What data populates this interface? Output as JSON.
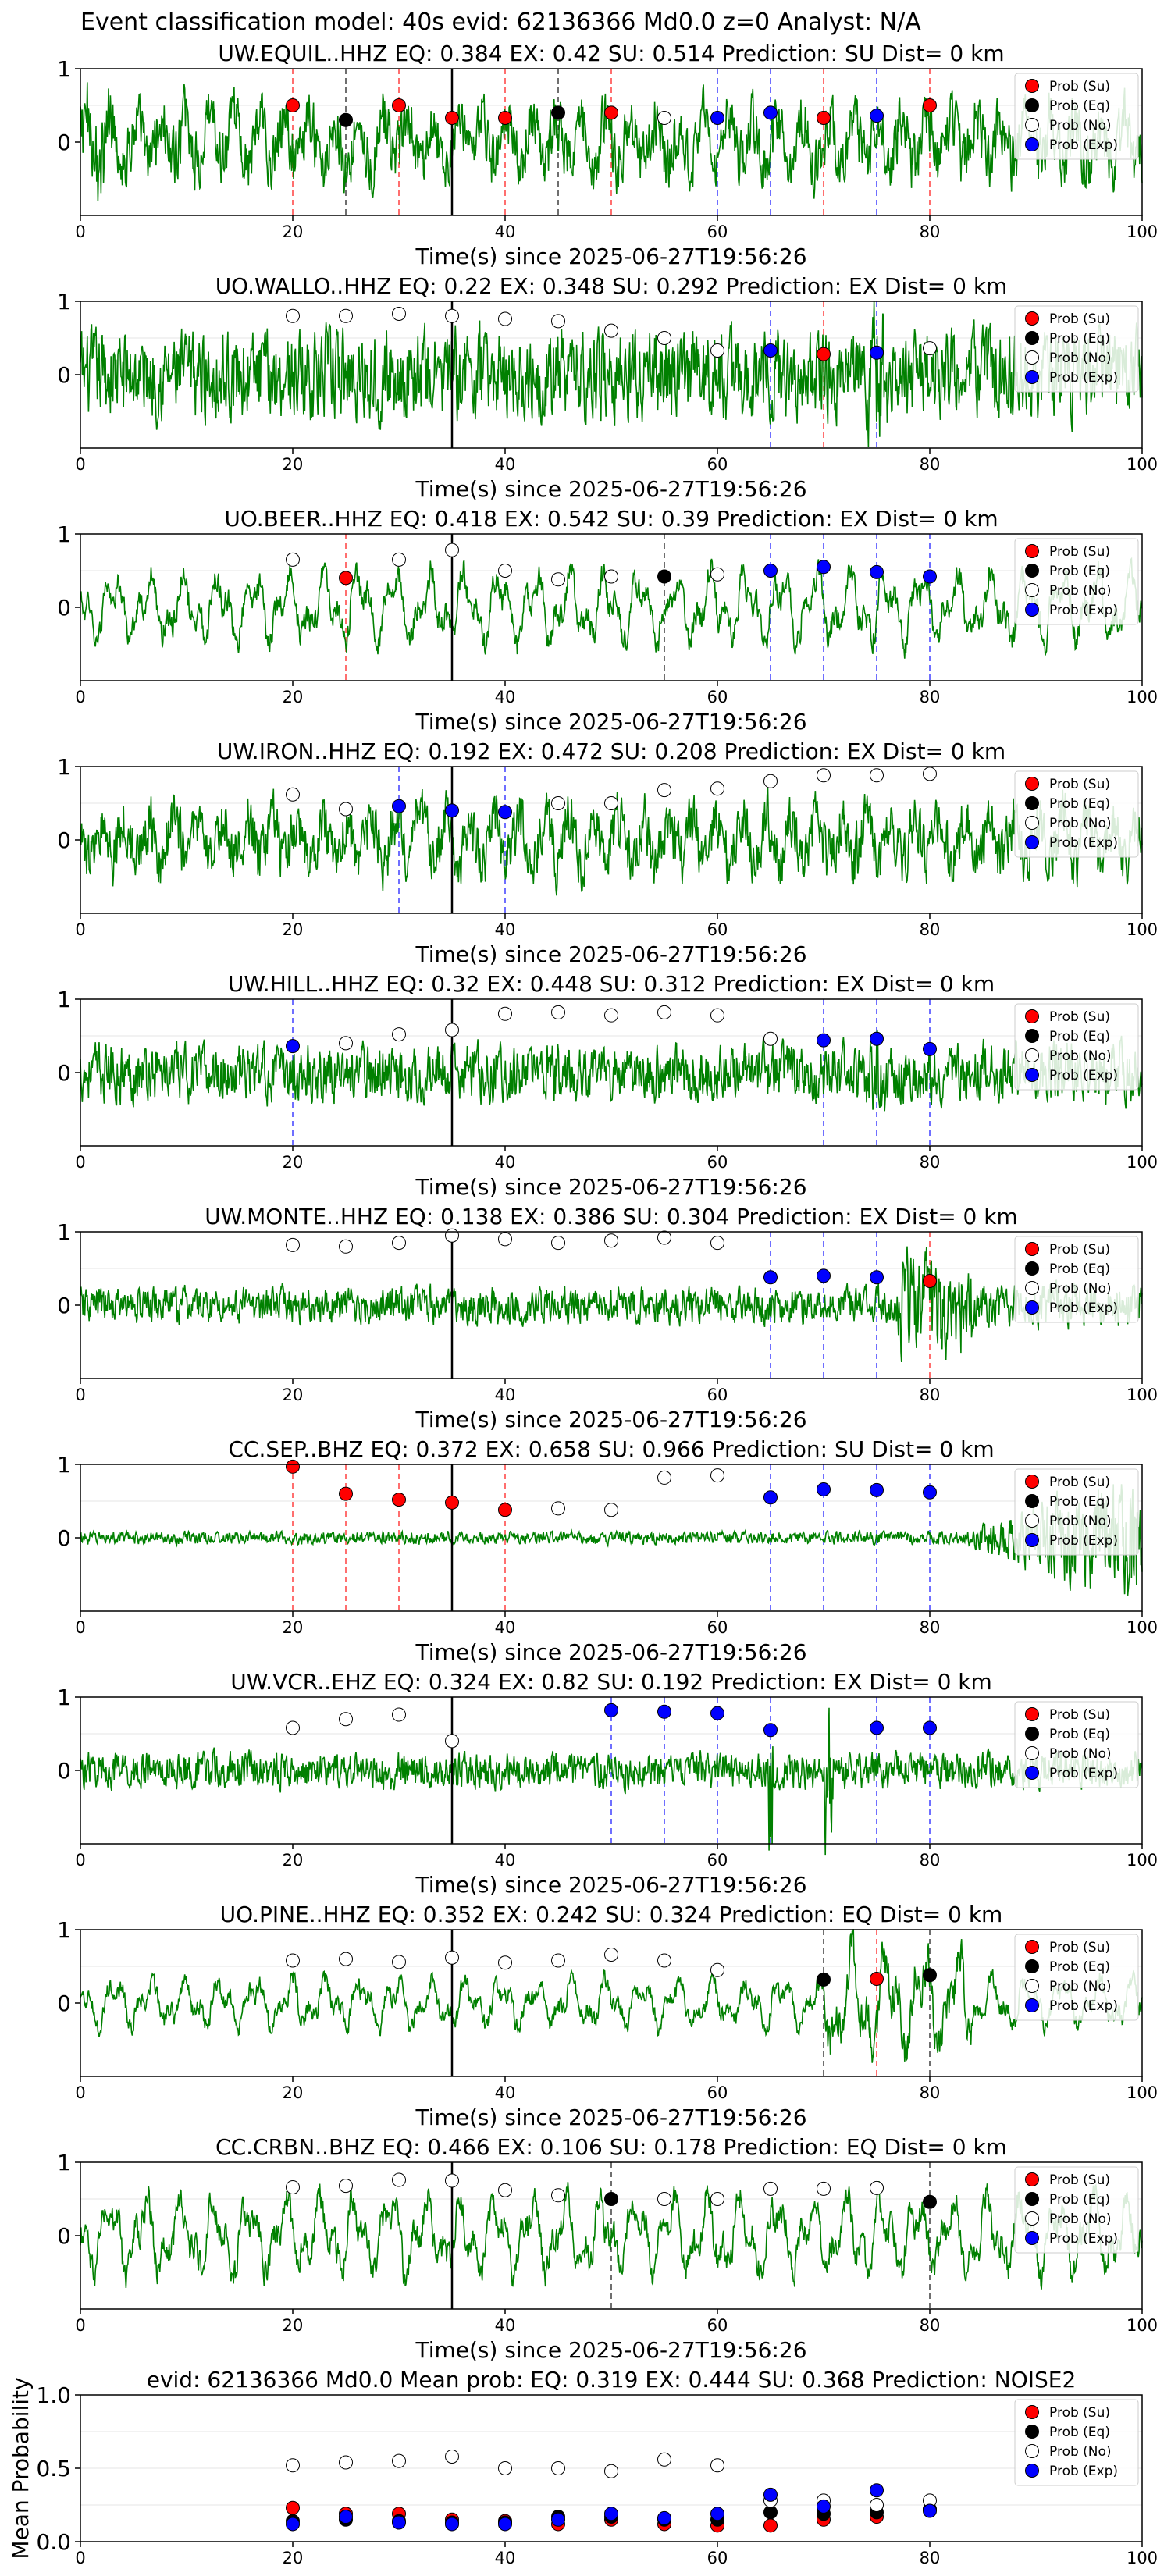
{
  "figure_title": "Event classification model: 40s evid: 62136366 Md0.0 z=0 Analyst: N/A",
  "legend_labels": [
    "Prob (Su)",
    "Prob (Eq)",
    "Prob (No)",
    "Prob (Exp)"
  ],
  "colors": {
    "su": "#ff0000",
    "eq": "#000000",
    "no": "#ffffff",
    "exp": "#0000ff",
    "trace": "#008000",
    "vline_su": "#ff0000",
    "vline_eq": "#000000",
    "vline_exp": "#0000ff"
  },
  "chart_data": [
    {
      "type": "line",
      "title": "UW.EQUIL..HHZ    EQ: 0.384   EX: 0.42   SU: 0.514    Prediction: SU     Dist= 0 km",
      "xlabel": "Time(s) since 2025-06-27T19:56:26",
      "xlim": [
        0,
        100
      ],
      "ylim": [
        -1,
        1
      ],
      "xticks": [
        0,
        20,
        40,
        60,
        80,
        100
      ],
      "yticks": [
        0,
        1
      ],
      "marker": 35,
      "amp": 0.75,
      "style": "mix",
      "points": [
        [
          20,
          "su",
          0.5
        ],
        [
          25,
          "eq",
          0.3
        ],
        [
          30,
          "su",
          0.5
        ],
        [
          35,
          "su",
          0.33
        ],
        [
          40,
          "su",
          0.33
        ],
        [
          45,
          "eq",
          0.4
        ],
        [
          50,
          "su",
          0.4
        ],
        [
          55,
          "no",
          0.33
        ],
        [
          60,
          "exp",
          0.33
        ],
        [
          65,
          "exp",
          0.4
        ],
        [
          70,
          "su",
          0.33
        ],
        [
          75,
          "exp",
          0.36
        ],
        [
          80,
          "su",
          0.5
        ]
      ]
    },
    {
      "type": "line",
      "title": "UO.WALLO..HHZ   EQ: 0.22   EX: 0.348   SU: 0.292    Prediction: EX     Dist= 0 km",
      "xlabel": "Time(s) since 2025-06-27T19:56:26",
      "xlim": [
        0,
        100
      ],
      "ylim": [
        -1,
        1
      ],
      "xticks": [
        0,
        20,
        40,
        60,
        80,
        100
      ],
      "yticks": [
        0,
        1
      ],
      "marker": 35,
      "amp": 0.85,
      "style": "dense",
      "points": [
        [
          20,
          "no",
          0.8
        ],
        [
          25,
          "no",
          0.8
        ],
        [
          30,
          "no",
          0.83
        ],
        [
          35,
          "no",
          0.8
        ],
        [
          40,
          "no",
          0.76
        ],
        [
          45,
          "no",
          0.73
        ],
        [
          50,
          "no",
          0.6
        ],
        [
          55,
          "no",
          0.5
        ],
        [
          60,
          "no",
          0.33
        ],
        [
          65,
          "exp",
          0.33
        ],
        [
          70,
          "su",
          0.28
        ],
        [
          75,
          "exp",
          0.3
        ],
        [
          80,
          "no",
          0.36
        ]
      ]
    },
    {
      "type": "line",
      "title": "UO.BEER..HHZ   EQ: 0.418   EX: 0.542   SU: 0.39    Prediction: EX     Dist= 0 km",
      "xlabel": "Time(s) since 2025-06-27T19:56:26",
      "xlim": [
        0,
        100
      ],
      "ylim": [
        -1,
        1
      ],
      "xticks": [
        0,
        20,
        40,
        60,
        80,
        100
      ],
      "yticks": [
        0,
        1
      ],
      "marker": 35,
      "amp": 0.6,
      "style": "wave",
      "points": [
        [
          20,
          "no",
          0.65
        ],
        [
          25,
          "su",
          0.4
        ],
        [
          30,
          "no",
          0.65
        ],
        [
          35,
          "no",
          0.78
        ],
        [
          40,
          "no",
          0.5
        ],
        [
          45,
          "no",
          0.38
        ],
        [
          50,
          "no",
          0.42
        ],
        [
          55,
          "eq",
          0.42
        ],
        [
          60,
          "no",
          0.45
        ],
        [
          65,
          "exp",
          0.5
        ],
        [
          70,
          "exp",
          0.55
        ],
        [
          75,
          "exp",
          0.48
        ],
        [
          80,
          "exp",
          0.42
        ]
      ]
    },
    {
      "type": "line",
      "title": "UW.IRON..HHZ   EQ: 0.192   EX: 0.472   SU: 0.208    Prediction: EX     Dist= 0 km",
      "xlabel": "Time(s) since 2025-06-27T19:56:26",
      "xlim": [
        0,
        100
      ],
      "ylim": [
        -1,
        1
      ],
      "xticks": [
        0,
        20,
        40,
        60,
        80,
        100
      ],
      "yticks": [
        0,
        1
      ],
      "marker": 35,
      "amp": 0.7,
      "style": "mix",
      "points": [
        [
          20,
          "no",
          0.62
        ],
        [
          25,
          "no",
          0.42
        ],
        [
          30,
          "exp",
          0.46
        ],
        [
          35,
          "exp",
          0.4
        ],
        [
          40,
          "exp",
          0.38
        ],
        [
          45,
          "no",
          0.5
        ],
        [
          50,
          "no",
          0.5
        ],
        [
          55,
          "no",
          0.68
        ],
        [
          60,
          "no",
          0.7
        ],
        [
          65,
          "no",
          0.8
        ],
        [
          70,
          "no",
          0.88
        ],
        [
          75,
          "no",
          0.88
        ],
        [
          80,
          "no",
          0.9
        ]
      ]
    },
    {
      "type": "line",
      "title": "UW.HILL..HHZ   EQ: 0.32   EX: 0.448   SU: 0.312    Prediction: EX     Dist= 0 km",
      "xlabel": "Time(s) since 2025-06-27T19:56:26",
      "xlim": [
        0,
        100
      ],
      "ylim": [
        -1,
        1
      ],
      "xticks": [
        0,
        20,
        40,
        60,
        80,
        100
      ],
      "yticks": [
        0,
        1
      ],
      "marker": 35,
      "amp": 0.55,
      "style": "dense",
      "points": [
        [
          20,
          "exp",
          0.36
        ],
        [
          25,
          "no",
          0.4
        ],
        [
          30,
          "no",
          0.52
        ],
        [
          35,
          "no",
          0.58
        ],
        [
          40,
          "no",
          0.8
        ],
        [
          45,
          "no",
          0.82
        ],
        [
          50,
          "no",
          0.78
        ],
        [
          55,
          "no",
          0.82
        ],
        [
          60,
          "no",
          0.78
        ],
        [
          65,
          "no",
          0.46
        ],
        [
          70,
          "exp",
          0.44
        ],
        [
          75,
          "exp",
          0.46
        ],
        [
          80,
          "exp",
          0.32
        ]
      ]
    },
    {
      "type": "line",
      "title": "UW.MONTE..HHZ   EQ: 0.138   EX: 0.386   SU: 0.304    Prediction: EX     Dist= 0 km",
      "xlabel": "Time(s) since 2025-06-27T19:56:26",
      "xlim": [
        0,
        100
      ],
      "ylim": [
        -1,
        1
      ],
      "xticks": [
        0,
        20,
        40,
        60,
        80,
        100
      ],
      "yticks": [
        0,
        1
      ],
      "marker": 35,
      "amp": 0.35,
      "style": "burst80",
      "points": [
        [
          20,
          "no",
          0.82
        ],
        [
          25,
          "no",
          0.8
        ],
        [
          30,
          "no",
          0.85
        ],
        [
          35,
          "no",
          0.95
        ],
        [
          40,
          "no",
          0.9
        ],
        [
          45,
          "no",
          0.85
        ],
        [
          50,
          "no",
          0.88
        ],
        [
          55,
          "no",
          0.92
        ],
        [
          60,
          "no",
          0.85
        ],
        [
          65,
          "exp",
          0.38
        ],
        [
          70,
          "exp",
          0.4
        ],
        [
          75,
          "exp",
          0.38
        ],
        [
          80,
          "su",
          0.33
        ]
      ]
    },
    {
      "type": "line",
      "title": "CC.SEP..BHZ   EQ: 0.372   EX: 0.658   SU: 0.966    Prediction: SU     Dist= 0 km",
      "xlabel": "Time(s) since 2025-06-27T19:56:26",
      "xlim": [
        0,
        100
      ],
      "ylim": [
        -1,
        1
      ],
      "xticks": [
        0,
        20,
        40,
        60,
        80,
        100
      ],
      "yticks": [
        0,
        1
      ],
      "marker": 35,
      "amp": 0.12,
      "style": "quietburst",
      "points": [
        [
          20,
          "su",
          0.97
        ],
        [
          25,
          "su",
          0.6
        ],
        [
          30,
          "su",
          0.52
        ],
        [
          35,
          "su",
          0.48
        ],
        [
          40,
          "su",
          0.38
        ],
        [
          45,
          "no",
          0.4
        ],
        [
          50,
          "no",
          0.38
        ],
        [
          55,
          "no",
          0.82
        ],
        [
          60,
          "no",
          0.85
        ],
        [
          65,
          "exp",
          0.55
        ],
        [
          70,
          "exp",
          0.66
        ],
        [
          75,
          "exp",
          0.65
        ],
        [
          80,
          "exp",
          0.62
        ]
      ]
    },
    {
      "type": "line",
      "title": "UW.VCR..EHZ   EQ: 0.324   EX: 0.82   SU: 0.192    Prediction: EX     Dist= 0 km",
      "xlabel": "Time(s) since 2025-06-27T19:56:26",
      "xlim": [
        0,
        100
      ],
      "ylim": [
        -1,
        1
      ],
      "xticks": [
        0,
        20,
        40,
        60,
        80,
        100
      ],
      "yticks": [
        0,
        1
      ],
      "marker": 35,
      "amp": 0.35,
      "style": "spikes",
      "points": [
        [
          20,
          "no",
          0.58
        ],
        [
          25,
          "no",
          0.7
        ],
        [
          30,
          "no",
          0.76
        ],
        [
          35,
          "no",
          0.4
        ],
        [
          50,
          "exp",
          0.82
        ],
        [
          55,
          "exp",
          0.8
        ],
        [
          60,
          "exp",
          0.78
        ],
        [
          65,
          "exp",
          0.55
        ],
        [
          75,
          "exp",
          0.58
        ],
        [
          80,
          "exp",
          0.58
        ]
      ]
    },
    {
      "type": "line",
      "title": "UO.PINE..HHZ   EQ: 0.352   EX: 0.242   SU: 0.324    Prediction: EQ     Dist= 0 km",
      "xlabel": "Time(s) since 2025-06-27T19:56:26",
      "xlim": [
        0,
        100
      ],
      "ylim": [
        -1,
        1
      ],
      "xticks": [
        0,
        20,
        40,
        60,
        80,
        100
      ],
      "yticks": [
        0,
        1
      ],
      "marker": 35,
      "amp": 0.4,
      "style": "waveburst",
      "points": [
        [
          20,
          "no",
          0.58
        ],
        [
          25,
          "no",
          0.6
        ],
        [
          30,
          "no",
          0.56
        ],
        [
          35,
          "no",
          0.62
        ],
        [
          40,
          "no",
          0.55
        ],
        [
          45,
          "no",
          0.58
        ],
        [
          50,
          "no",
          0.66
        ],
        [
          55,
          "no",
          0.58
        ],
        [
          60,
          "no",
          0.45
        ],
        [
          70,
          "eq",
          0.32
        ],
        [
          75,
          "su",
          0.33
        ],
        [
          80,
          "eq",
          0.38
        ]
      ]
    },
    {
      "type": "line",
      "title": "CC.CRBN..BHZ   EQ: 0.466   EX: 0.106   SU: 0.178    Prediction: EQ     Dist= 0 km",
      "xlabel": "Time(s) since 2025-06-27T19:56:26",
      "xlim": [
        0,
        100
      ],
      "ylim": [
        -1,
        1
      ],
      "xticks": [
        0,
        20,
        40,
        60,
        80,
        100
      ],
      "yticks": [
        0,
        1
      ],
      "marker": 35,
      "amp": 0.65,
      "style": "wave",
      "points": [
        [
          20,
          "no",
          0.66
        ],
        [
          25,
          "no",
          0.68
        ],
        [
          30,
          "no",
          0.76
        ],
        [
          35,
          "no",
          0.75
        ],
        [
          40,
          "no",
          0.62
        ],
        [
          45,
          "no",
          0.55
        ],
        [
          50,
          "eq",
          0.5
        ],
        [
          55,
          "no",
          0.5
        ],
        [
          60,
          "no",
          0.5
        ],
        [
          65,
          "no",
          0.64
        ],
        [
          70,
          "no",
          0.64
        ],
        [
          75,
          "no",
          0.65
        ],
        [
          80,
          "eq",
          0.46
        ]
      ]
    },
    {
      "type": "scatter",
      "title": "evid: 62136366  Md0.0   Mean prob:   EQ: 0.319   EX: 0.444   SU: 0.368    Prediction: NOISE2",
      "xlabel": "",
      "ylabel": "Mean Probability",
      "xlim": [
        0,
        100
      ],
      "ylim": [
        0,
        1
      ],
      "xticks": [
        0,
        20,
        40,
        60,
        80,
        100
      ],
      "yticks": [
        0.0,
        0.5,
        1.0
      ],
      "yticklabels": [
        "0.0",
        "0.5",
        "1.0"
      ],
      "series": [
        {
          "name": "Prob (Su)",
          "key": "su",
          "x": [
            20,
            25,
            30,
            35,
            40,
            45,
            50,
            55,
            60,
            65,
            70,
            75,
            80
          ],
          "y": [
            0.23,
            0.19,
            0.19,
            0.15,
            0.14,
            0.12,
            0.15,
            0.12,
            0.11,
            0.11,
            0.15,
            0.17,
            0.22
          ]
        },
        {
          "name": "Prob (Eq)",
          "key": "eq",
          "x": [
            20,
            25,
            30,
            35,
            40,
            45,
            50,
            55,
            60,
            65,
            70,
            75,
            80
          ],
          "y": [
            0.14,
            0.15,
            0.14,
            0.13,
            0.13,
            0.17,
            0.17,
            0.15,
            0.15,
            0.2,
            0.19,
            0.2,
            0.22
          ]
        },
        {
          "name": "Prob (No)",
          "key": "no",
          "x": [
            20,
            25,
            30,
            35,
            40,
            45,
            50,
            55,
            60,
            65,
            70,
            75,
            80
          ],
          "y": [
            0.52,
            0.54,
            0.55,
            0.58,
            0.5,
            0.5,
            0.48,
            0.56,
            0.52,
            0.28,
            0.28,
            0.25,
            0.28
          ]
        },
        {
          "name": "Prob (Exp)",
          "key": "exp",
          "x": [
            20,
            25,
            30,
            35,
            40,
            45,
            50,
            55,
            60,
            65,
            70,
            75,
            80
          ],
          "y": [
            0.12,
            0.17,
            0.13,
            0.12,
            0.12,
            0.15,
            0.19,
            0.16,
            0.19,
            0.32,
            0.24,
            0.35,
            0.21
          ]
        }
      ]
    }
  ]
}
